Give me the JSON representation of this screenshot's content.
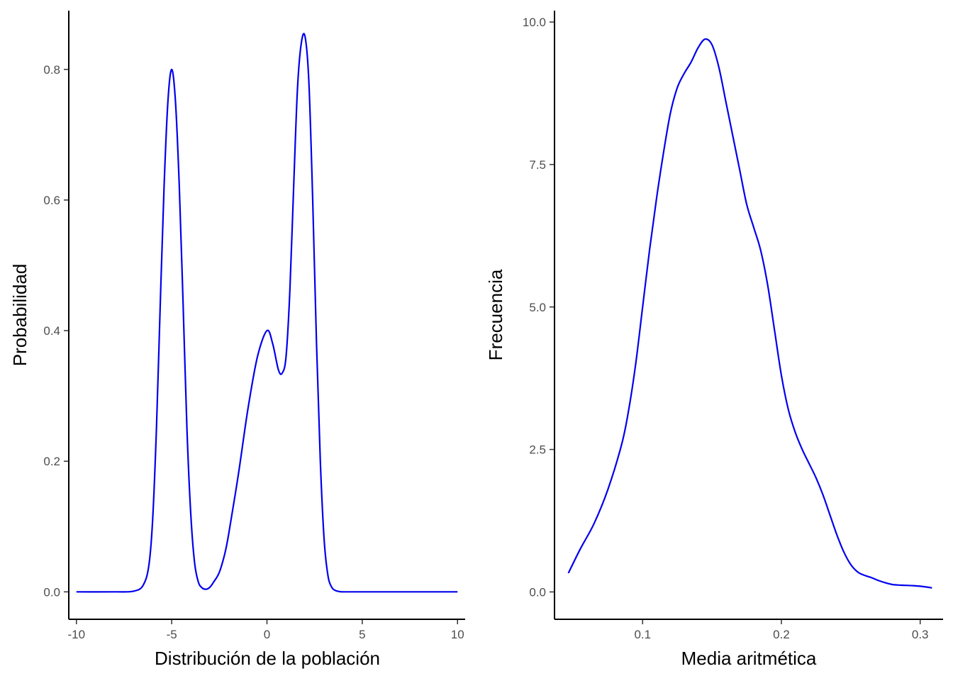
{
  "chart_data": [
    {
      "type": "line",
      "title": "",
      "xlabel": "Distribución de la población",
      "ylabel": "Probabilidad",
      "xlim": [
        -10.4,
        10.4
      ],
      "ylim": [
        -0.042,
        0.89
      ],
      "x_ticks": [
        -10,
        -5,
        0,
        5,
        10
      ],
      "x_tick_labels": [
        "-10",
        "-5",
        "0",
        "5",
        "10"
      ],
      "y_ticks": [
        0.0,
        0.2,
        0.4,
        0.6,
        0.8
      ],
      "y_tick_labels": [
        "0.0",
        "0.2",
        "0.4",
        "0.6",
        "0.8"
      ],
      "grid": false,
      "color": "#0000ee",
      "series": [
        {
          "x": [
            -10,
            -8,
            -7,
            -6.5,
            -6.2,
            -6.0,
            -5.8,
            -5.6,
            -5.4,
            -5.2,
            -5.0,
            -4.8,
            -4.6,
            -4.4,
            -4.2,
            -4.0,
            -3.8,
            -3.6,
            -3.4,
            -3.2,
            -3.0,
            -2.8,
            -2.5,
            -2.2,
            -2.0,
            -1.5,
            -1.0,
            -0.5,
            0.0,
            0.3,
            0.6,
            0.8,
            1.0,
            1.2,
            1.4,
            1.6,
            1.8,
            2.0,
            2.2,
            2.4,
            2.6,
            2.8,
            3.0,
            3.2,
            3.4,
            3.6,
            3.8,
            4.0,
            5.0,
            7.0,
            10.0
          ],
          "y": [
            0.0,
            0.0,
            0.001,
            0.01,
            0.04,
            0.11,
            0.25,
            0.44,
            0.62,
            0.75,
            0.8,
            0.75,
            0.62,
            0.44,
            0.25,
            0.12,
            0.045,
            0.015,
            0.006,
            0.004,
            0.007,
            0.015,
            0.03,
            0.06,
            0.09,
            0.18,
            0.28,
            0.36,
            0.4,
            0.38,
            0.34,
            0.335,
            0.36,
            0.46,
            0.62,
            0.77,
            0.84,
            0.85,
            0.78,
            0.6,
            0.38,
            0.2,
            0.08,
            0.025,
            0.007,
            0.002,
            0.0005,
            0.0,
            0.0,
            0.0,
            0.0
          ]
        }
      ]
    },
    {
      "type": "line",
      "title": "",
      "xlabel": "Media aritmética",
      "ylabel": "Frecuencia",
      "xlim": [
        0.0365,
        0.3165
      ],
      "ylim": [
        -0.48,
        10.2
      ],
      "x_ticks": [
        0.1,
        0.2,
        0.3
      ],
      "x_tick_labels": [
        "0.1",
        "0.2",
        "0.3"
      ],
      "y_ticks": [
        0.0,
        2.5,
        5.0,
        7.5,
        10.0
      ],
      "y_tick_labels": [
        "0.0",
        "2.5",
        "5.0",
        "7.5",
        "10.0"
      ],
      "grid": false,
      "color": "#0000ee",
      "series": [
        {
          "x": [
            0.0465,
            0.055,
            0.065,
            0.075,
            0.085,
            0.09,
            0.095,
            0.1,
            0.105,
            0.11,
            0.115,
            0.12,
            0.125,
            0.13,
            0.135,
            0.14,
            0.145,
            0.15,
            0.155,
            0.16,
            0.165,
            0.17,
            0.175,
            0.18,
            0.185,
            0.19,
            0.195,
            0.2,
            0.205,
            0.21,
            0.215,
            0.22,
            0.225,
            0.23,
            0.235,
            0.24,
            0.245,
            0.25,
            0.255,
            0.26,
            0.265,
            0.27,
            0.275,
            0.28,
            0.285,
            0.29,
            0.295,
            0.3,
            0.305,
            0.3085
          ],
          "y": [
            0.33,
            0.75,
            1.2,
            1.8,
            2.6,
            3.2,
            4.0,
            5.0,
            6.0,
            6.9,
            7.7,
            8.4,
            8.85,
            9.1,
            9.3,
            9.55,
            9.7,
            9.6,
            9.2,
            8.6,
            8.0,
            7.4,
            6.8,
            6.4,
            6.0,
            5.4,
            4.6,
            3.8,
            3.2,
            2.8,
            2.5,
            2.25,
            2.0,
            1.7,
            1.35,
            1.0,
            0.7,
            0.48,
            0.35,
            0.29,
            0.25,
            0.2,
            0.16,
            0.13,
            0.12,
            0.115,
            0.11,
            0.1,
            0.085,
            0.07
          ]
        }
      ]
    }
  ]
}
